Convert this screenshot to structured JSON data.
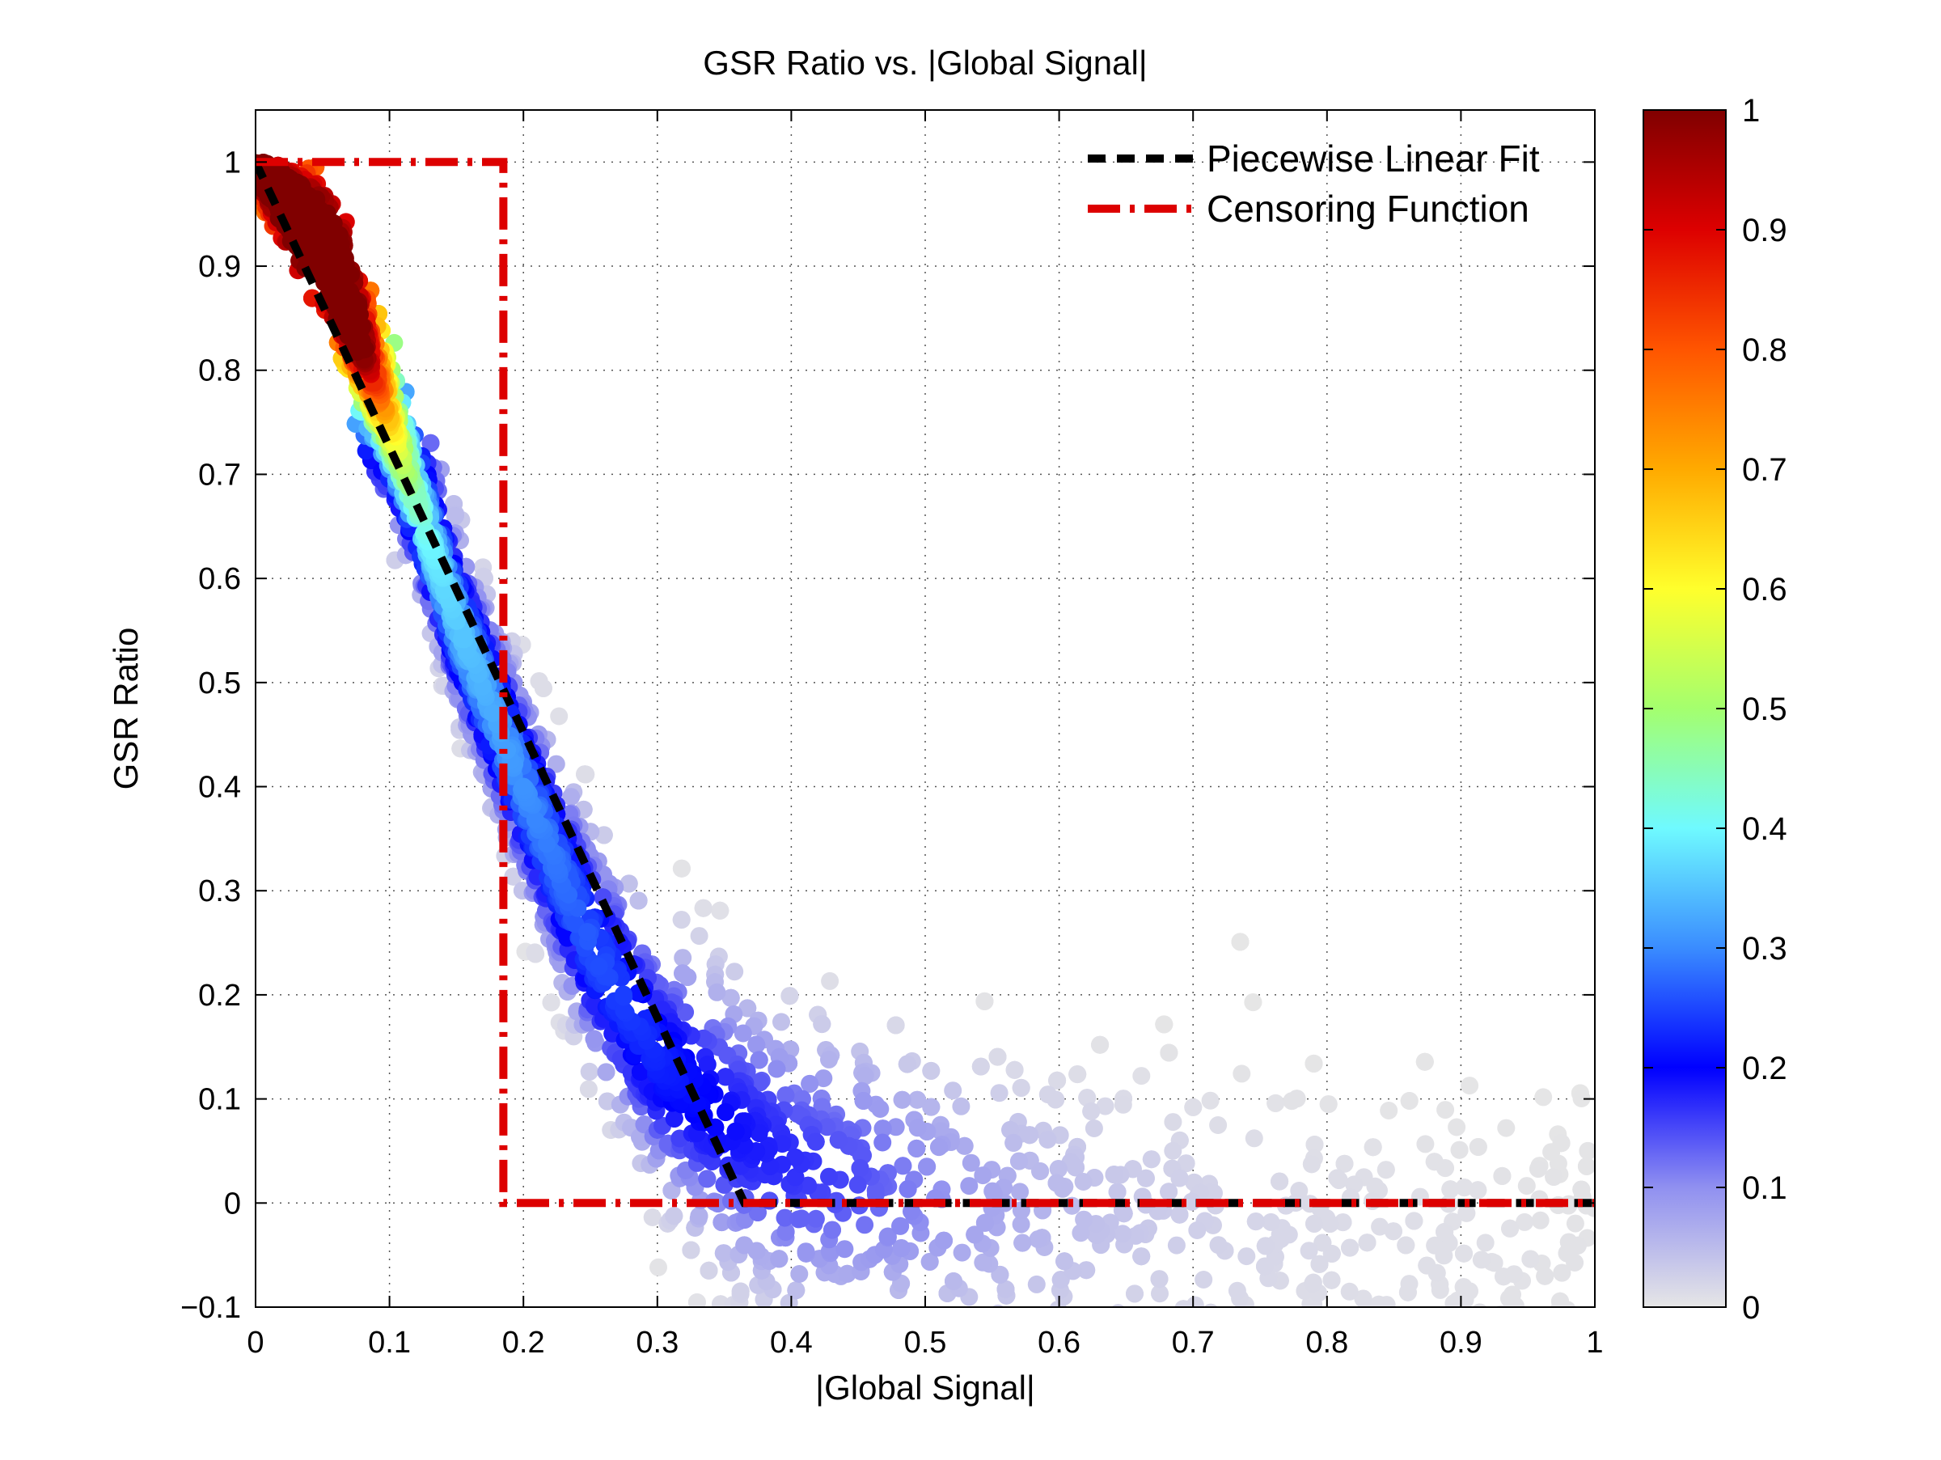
{
  "chart_data": {
    "type": "scatter",
    "title": "GSR Ratio vs. |Global Signal|",
    "xlabel": "|Global Signal|",
    "ylabel": "GSR Ratio",
    "xlim": [
      0,
      1
    ],
    "ylim": [
      -0.1,
      1.05
    ],
    "grid": true,
    "x_ticks": [
      0,
      0.1,
      0.2,
      0.3,
      0.4,
      0.5,
      0.6,
      0.7,
      0.8,
      0.9,
      1
    ],
    "x_tick_labels": [
      "0",
      "0.1",
      "0.2",
      "0.3",
      "0.4",
      "0.5",
      "0.6",
      "0.7",
      "0.8",
      "0.9",
      "1"
    ],
    "y_ticks": [
      -0.1,
      0,
      0.1,
      0.2,
      0.3,
      0.4,
      0.5,
      0.6,
      0.7,
      0.8,
      0.9,
      1
    ],
    "y_tick_labels": [
      "−0.1",
      "0",
      "0.1",
      "0.2",
      "0.3",
      "0.4",
      "0.5",
      "0.6",
      "0.7",
      "0.8",
      "0.9",
      "1"
    ],
    "legend_position": "top-right",
    "legend": [
      {
        "label": "Piecewise Linear Fit",
        "color": "#000000",
        "style": "dashed"
      },
      {
        "label": "Censoring Function",
        "color": "#dd0000",
        "style": "dashdot"
      }
    ],
    "scatter": {
      "description_note": "dense point cloud colored by normalized density",
      "ridge_points": [
        {
          "x": 0.0,
          "y": 1.0
        },
        {
          "x": 0.05,
          "y": 0.92
        },
        {
          "x": 0.1,
          "y": 0.75
        },
        {
          "x": 0.15,
          "y": 0.56
        },
        {
          "x": 0.2,
          "y": 0.4
        },
        {
          "x": 0.25,
          "y": 0.25
        },
        {
          "x": 0.3,
          "y": 0.14
        },
        {
          "x": 0.35,
          "y": 0.08
        },
        {
          "x": 0.4,
          "y": 0.04
        },
        {
          "x": 0.5,
          "y": 0.01
        },
        {
          "x": 0.6,
          "y": -0.01
        },
        {
          "x": 0.7,
          "y": -0.02
        },
        {
          "x": 0.8,
          "y": -0.03
        },
        {
          "x": 0.9,
          "y": -0.04
        },
        {
          "x": 1.0,
          "y": -0.05
        }
      ],
      "density_peak": {
        "x": 0.05,
        "y": 0.92
      }
    },
    "lines": [
      {
        "name": "Piecewise Linear Fit",
        "color": "#000000",
        "style": "dashed",
        "points": [
          {
            "x": 0,
            "y": 1.0
          },
          {
            "x": 0.365,
            "y": 0.0
          },
          {
            "x": 1.0,
            "y": 0.0
          }
        ]
      },
      {
        "name": "Censoring Function",
        "color": "#dd0000",
        "style": "dashdot",
        "points": [
          {
            "x": 0,
            "y": 1.0
          },
          {
            "x": 0.185,
            "y": 1.0
          },
          {
            "x": 0.185,
            "y": 0.0
          },
          {
            "x": 1.0,
            "y": 0.0
          }
        ]
      }
    ],
    "colorbar": {
      "colormap": "jet-with-light-gray-low",
      "range": [
        0,
        1
      ],
      "ticks": [
        0,
        0.1,
        0.2,
        0.3,
        0.4,
        0.5,
        0.6,
        0.7,
        0.8,
        0.9,
        1
      ],
      "tick_labels": [
        "0",
        "0.1",
        "0.2",
        "0.3",
        "0.4",
        "0.5",
        "0.6",
        "0.7",
        "0.8",
        "0.9",
        "1"
      ],
      "stops": [
        {
          "v": 0.0,
          "color": "#e6e6e6"
        },
        {
          "v": 0.1,
          "color": "#9090f0"
        },
        {
          "v": 0.2,
          "color": "#0000ff"
        },
        {
          "v": 0.3,
          "color": "#3a8cff"
        },
        {
          "v": 0.4,
          "color": "#6ffaff"
        },
        {
          "v": 0.5,
          "color": "#a4ff6e"
        },
        {
          "v": 0.6,
          "color": "#ffff2c"
        },
        {
          "v": 0.7,
          "color": "#ffaa00"
        },
        {
          "v": 0.8,
          "color": "#ff5500"
        },
        {
          "v": 0.9,
          "color": "#dd0000"
        },
        {
          "v": 1.0,
          "color": "#800000"
        }
      ]
    }
  }
}
